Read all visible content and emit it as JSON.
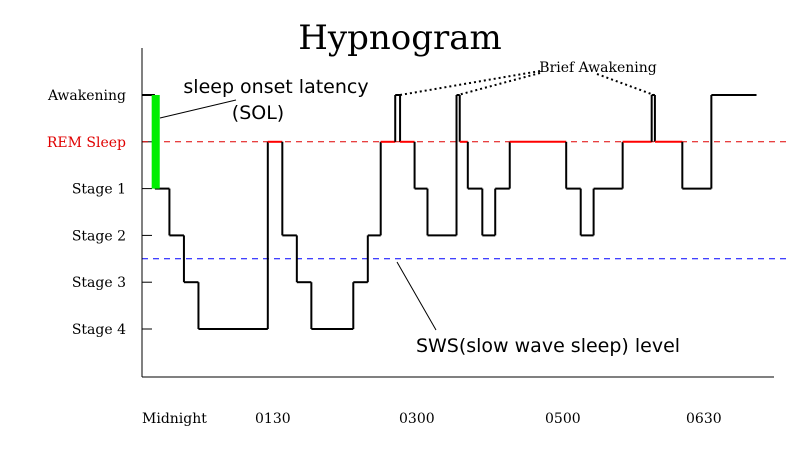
{
  "chart_data": {
    "type": "line",
    "title": "Hypnogram",
    "xlabel": "",
    "ylabel": "",
    "y_categories": [
      "Awakening",
      "REM Sleep",
      "Stage 1",
      "Stage 2",
      "Stage 3",
      "Stage 4"
    ],
    "x_unit": "minutes after midnight (approx.)",
    "xlim": [
      0,
      391
    ],
    "x_ticks": [
      {
        "value": 0,
        "label": "Midnight"
      },
      {
        "value": 70,
        "label": "0130"
      },
      {
        "value": 159,
        "label": "0300"
      },
      {
        "value": 250,
        "label": "0500"
      },
      {
        "value": 338,
        "label": "0630"
      }
    ],
    "segments": [
      {
        "start": 0,
        "end": 8,
        "stage": "Awakening"
      },
      {
        "start": 8,
        "end": 17,
        "stage": "Stage 1"
      },
      {
        "start": 17,
        "end": 26,
        "stage": "Stage 2"
      },
      {
        "start": 26,
        "end": 35,
        "stage": "Stage 3"
      },
      {
        "start": 35,
        "end": 78,
        "stage": "Stage 4"
      },
      {
        "start": 78,
        "end": 87,
        "stage": "REM Sleep"
      },
      {
        "start": 87,
        "end": 96,
        "stage": "Stage 2"
      },
      {
        "start": 96,
        "end": 105,
        "stage": "Stage 3"
      },
      {
        "start": 105,
        "end": 131,
        "stage": "Stage 4"
      },
      {
        "start": 131,
        "end": 140,
        "stage": "Stage 3"
      },
      {
        "start": 140,
        "end": 148,
        "stage": "Stage 2"
      },
      {
        "start": 148,
        "end": 157,
        "stage": "REM Sleep"
      },
      {
        "start": 157,
        "end": 160,
        "stage": "Awakening"
      },
      {
        "start": 160,
        "end": 169,
        "stage": "REM Sleep"
      },
      {
        "start": 169,
        "end": 177,
        "stage": "Stage 1"
      },
      {
        "start": 177,
        "end": 195,
        "stage": "Stage 2"
      },
      {
        "start": 195,
        "end": 197,
        "stage": "Awakening"
      },
      {
        "start": 197,
        "end": 202,
        "stage": "REM Sleep"
      },
      {
        "start": 202,
        "end": 211,
        "stage": "Stage 1"
      },
      {
        "start": 211,
        "end": 219,
        "stage": "Stage 2"
      },
      {
        "start": 219,
        "end": 228,
        "stage": "Stage 1"
      },
      {
        "start": 228,
        "end": 263,
        "stage": "REM Sleep"
      },
      {
        "start": 263,
        "end": 272,
        "stage": "Stage 1"
      },
      {
        "start": 272,
        "end": 280,
        "stage": "Stage 2"
      },
      {
        "start": 280,
        "end": 298,
        "stage": "Stage 1"
      },
      {
        "start": 298,
        "end": 316,
        "stage": "REM Sleep"
      },
      {
        "start": 316,
        "end": 318,
        "stage": "Awakening"
      },
      {
        "start": 318,
        "end": 335,
        "stage": "REM Sleep"
      },
      {
        "start": 335,
        "end": 353,
        "stage": "Stage 1"
      },
      {
        "start": 353,
        "end": 381,
        "stage": "Awakening"
      }
    ],
    "rem_reference": {
      "stage": "REM Sleep",
      "color": "#e00000",
      "style": "dashed"
    },
    "sws_reference": {
      "level_between": [
        "Stage 2",
        "Stage 3"
      ],
      "color": "#0000ff",
      "style": "dashed"
    },
    "sol_marker": {
      "start": 6,
      "end": 11,
      "from": "Awakening",
      "to": "Stage 1",
      "color": "#00ee00"
    },
    "colors": {
      "line": "#000000",
      "rem": "#ff0000",
      "rem_label": "#e00000",
      "sol": "#00ee00",
      "sws": "#0000ff"
    },
    "annotations": {
      "sol_line1": "sleep onset latency",
      "sol_line2": "(SOL)",
      "sws": "SWS(slow wave sleep) level",
      "brief": "Brief Awakening"
    },
    "grid": false,
    "legend": "none"
  }
}
